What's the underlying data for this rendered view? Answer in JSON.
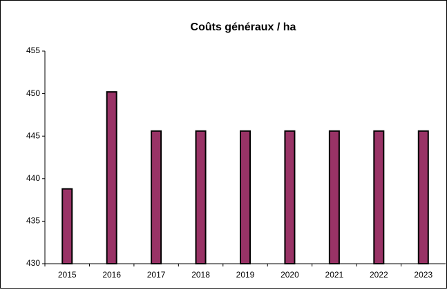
{
  "chart_data": {
    "type": "bar",
    "title": "Coûts généraux / ha",
    "categories": [
      "2015",
      "2016",
      "2017",
      "2018",
      "2019",
      "2020",
      "2021",
      "2022",
      "2023"
    ],
    "values": [
      438.8,
      450.2,
      445.6,
      445.6,
      445.6,
      445.6,
      445.6,
      445.6,
      445.6
    ],
    "color": "#993366",
    "ylim": [
      430,
      455
    ],
    "yticks": [
      430,
      435,
      440,
      445,
      450,
      455
    ],
    "grid": false
  }
}
